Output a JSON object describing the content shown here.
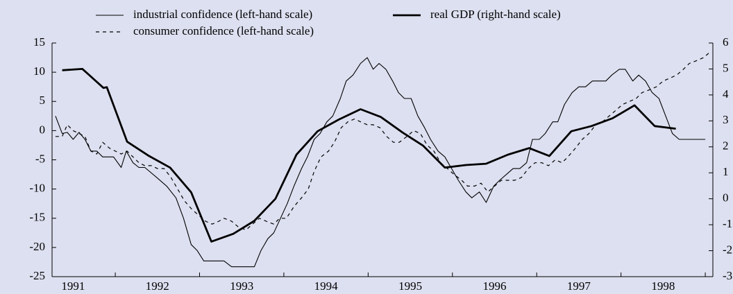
{
  "chart_data": {
    "type": "line",
    "background": "#dde0f0",
    "xlim": [
      1991.25,
      1999.09
    ],
    "xticks": [
      {
        "value": 1991.5,
        "label": "1991"
      },
      {
        "value": 1992.5,
        "label": "1992"
      },
      {
        "value": 1993.5,
        "label": "1993"
      },
      {
        "value": 1994.5,
        "label": "1994"
      },
      {
        "value": 1995.5,
        "label": "1995"
      },
      {
        "value": 1996.5,
        "label": "1996"
      },
      {
        "value": 1997.5,
        "label": "1997"
      },
      {
        "value": 1998.5,
        "label": "1998"
      }
    ],
    "xtick_marks": [
      1992,
      1993,
      1994,
      1995,
      1996,
      1997,
      1998,
      1999
    ],
    "ylim": [
      -25,
      15
    ],
    "yticks": [
      -25,
      -20,
      -15,
      -10,
      -5,
      0,
      5,
      10,
      15
    ],
    "y2lim": [
      -3,
      6
    ],
    "y2ticks": [
      -3,
      -2,
      -1,
      0,
      1,
      2,
      3,
      4,
      5,
      6
    ],
    "series": [
      {
        "name": "industrial confidence (left-hand scale)",
        "color": "#000000",
        "linestyle": "solid",
        "x": [
          1991.29,
          1991.37,
          1991.43,
          1991.5,
          1991.57,
          1991.64,
          1991.71,
          1991.78,
          1991.85,
          1991.98,
          1992.07,
          1992.13,
          1992.21,
          1992.28,
          1992.35,
          1992.49,
          1992.61,
          1992.72,
          1992.81,
          1992.9,
          1992.97,
          1993.05,
          1993.29,
          1993.38,
          1993.65,
          1993.73,
          1993.81,
          1993.88,
          1993.96,
          1994.04,
          1994.12,
          1994.21,
          1994.28,
          1994.36,
          1994.43,
          1994.51,
          1994.58,
          1994.67,
          1994.74,
          1994.82,
          1994.91,
          1994.99,
          1995.06,
          1995.13,
          1995.21,
          1995.29,
          1995.36,
          1995.43,
          1995.51,
          1995.59,
          1995.67,
          1995.74,
          1995.83,
          1995.91,
          1995.99,
          1996.07,
          1996.16,
          1996.23,
          1996.32,
          1996.4,
          1996.49,
          1996.56,
          1996.64,
          1996.72,
          1996.8,
          1996.88,
          1996.95,
          1997.03,
          1997.1,
          1997.19,
          1997.25,
          1997.33,
          1997.42,
          1997.5,
          1997.58,
          1997.66,
          1997.82,
          1997.89,
          1997.98,
          1998.05,
          1998.14,
          1998.21,
          1998.29,
          1998.37,
          1998.45,
          1998.53,
          1998.61,
          1998.69,
          1999.0
        ],
        "values": [
          2.5,
          -0.5,
          -0.3,
          -1.5,
          -0.3,
          -1.5,
          -3.5,
          -3.5,
          -4.5,
          -4.5,
          -6.3,
          -3.5,
          -5.5,
          -6.3,
          -6.3,
          -8,
          -9.5,
          -11.5,
          -15,
          -19.5,
          -20.5,
          -22.3,
          -22.3,
          -23.3,
          -23.3,
          -20.5,
          -18.5,
          -17.5,
          -15,
          -12.5,
          -9.5,
          -6.5,
          -4.5,
          -1.5,
          -0.5,
          1.5,
          2.5,
          5.5,
          8.5,
          9.5,
          11.5,
          12.5,
          10.5,
          11.5,
          10.5,
          8.5,
          6.5,
          5.5,
          5.5,
          2.5,
          0.5,
          -1.5,
          -3.5,
          -4.5,
          -6.5,
          -8.5,
          -10.5,
          -11.5,
          -10.5,
          -12.3,
          -9.5,
          -8.5,
          -7.5,
          -6.5,
          -6.5,
          -5.5,
          -1.5,
          -1.5,
          -0.5,
          1.5,
          1.5,
          4.5,
          6.5,
          7.5,
          7.5,
          8.5,
          8.5,
          9.5,
          10.5,
          10.5,
          8.5,
          9.5,
          8.5,
          6.5,
          5.5,
          2.5,
          -0.5,
          -1.5,
          -1.5
        ]
      },
      {
        "name": "consumer confidence (left-hand scale)",
        "color": "#000000",
        "linestyle": "dashed",
        "x": [
          1991.29,
          1991.37,
          1991.43,
          1991.5,
          1991.57,
          1991.64,
          1991.71,
          1991.78,
          1991.85,
          1991.93,
          1992.0,
          1992.07,
          1992.14,
          1992.21,
          1992.28,
          1992.35,
          1992.43,
          1992.5,
          1992.58,
          1992.66,
          1992.74,
          1992.82,
          1992.91,
          1992.99,
          1993.07,
          1993.15,
          1993.23,
          1993.29,
          1993.38,
          1993.46,
          1993.55,
          1993.63,
          1993.71,
          1993.79,
          1993.88,
          1993.95,
          1994.03,
          1994.12,
          1994.21,
          1994.29,
          1994.36,
          1994.44,
          1994.53,
          1994.6,
          1994.68,
          1994.76,
          1994.84,
          1994.91,
          1994.99,
          1995.06,
          1995.14,
          1995.22,
          1995.3,
          1995.37,
          1995.46,
          1995.54,
          1995.62,
          1995.7,
          1995.78,
          1995.86,
          1995.94,
          1996.02,
          1996.11,
          1996.18,
          1996.26,
          1996.34,
          1996.42,
          1996.5,
          1996.58,
          1996.66,
          1996.74,
          1996.82,
          1996.9,
          1996.98,
          1997.06,
          1997.14,
          1997.22,
          1997.3,
          1997.37,
          1997.46,
          1997.54,
          1997.62,
          1997.7,
          1997.78,
          1997.86,
          1997.94,
          1998.02,
          1998.1,
          1998.18,
          1998.25,
          1998.34,
          1998.42,
          1998.5,
          1998.58,
          1998.66,
          1998.74,
          1998.81,
          1998.9,
          1998.98,
          1999.06
        ],
        "values": [
          -1,
          -1,
          1,
          0,
          -0.5,
          -1,
          -3.5,
          -4,
          -2,
          -3,
          -3.5,
          -4,
          -3.5,
          -4.5,
          -5.5,
          -6,
          -6,
          -6.5,
          -6.5,
          -8,
          -10,
          -12,
          -13.5,
          -14.5,
          -15.5,
          -16,
          -15.5,
          -15,
          -15.5,
          -16.5,
          -17,
          -16,
          -15,
          -15.5,
          -16,
          -15,
          -15,
          -13,
          -11.5,
          -10,
          -7,
          -4.5,
          -3.5,
          -2,
          0.5,
          1.5,
          2,
          1.5,
          1,
          1,
          0.5,
          -1,
          -2,
          -2,
          -1,
          0,
          -0.5,
          -2.5,
          -3.5,
          -5.5,
          -6.5,
          -7.5,
          -8.5,
          -9.5,
          -9.5,
          -9,
          -10.5,
          -9.5,
          -8.5,
          -8.5,
          -8.5,
          -8,
          -6.5,
          -5.5,
          -5.5,
          -6,
          -5,
          -5.5,
          -4.5,
          -3,
          -1.5,
          -0.5,
          1,
          1.5,
          2.5,
          3.5,
          4.5,
          5,
          5.5,
          6.5,
          7,
          7.5,
          8.5,
          9,
          9.5,
          10.5,
          11.5,
          12,
          12.5,
          13.5
        ]
      },
      {
        "name": "real GDP (right-hand scale)",
        "color": "#000000",
        "linestyle": "thick",
        "axis": "y2",
        "x": [
          1991.37,
          1991.61,
          1991.86,
          1991.9,
          1992.14,
          1992.4,
          1992.65,
          1992.9,
          1993.14,
          1993.4,
          1993.65,
          1993.9,
          1994.15,
          1994.4,
          1994.65,
          1994.91,
          1995.15,
          1995.41,
          1995.65,
          1995.91,
          1996.16,
          1996.4,
          1996.66,
          1996.91,
          1997.15,
          1997.41,
          1997.65,
          1997.9,
          1998.16,
          1998.4,
          1998.65
        ],
        "values": [
          4.95,
          5.0,
          4.27,
          4.3,
          2.2,
          1.65,
          1.2,
          0.25,
          -1.65,
          -1.35,
          -0.85,
          0,
          1.7,
          2.6,
          3.05,
          3.45,
          3.15,
          2.55,
          2.05,
          1.2,
          1.3,
          1.35,
          1.7,
          1.95,
          1.65,
          2.6,
          2.8,
          3.1,
          3.6,
          2.8,
          2.7
        ]
      }
    ]
  }
}
